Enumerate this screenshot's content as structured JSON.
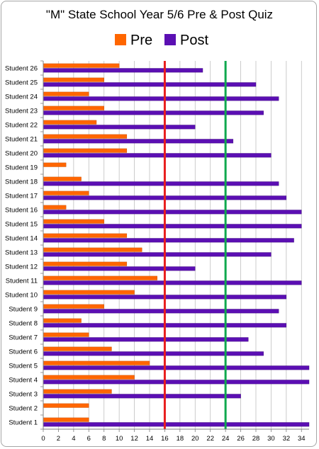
{
  "chart_data": {
    "type": "bar",
    "orientation": "horizontal",
    "title": "\"M\" State School Year 5/6 Pre & Post Quiz",
    "legend_placement": "top",
    "grid": true,
    "xlim": [
      0,
      35
    ],
    "xticks": [
      0,
      2,
      4,
      6,
      8,
      10,
      12,
      14,
      16,
      18,
      20,
      22,
      24,
      26,
      28,
      30,
      32,
      34
    ],
    "categories": [
      "Student 1",
      "Student 2",
      "Student 3",
      "Student 4",
      "Student 5",
      "Student 6",
      "Student 7",
      "Student 8",
      "Student 9",
      "Student 10",
      "Student 11",
      "Student 12",
      "Student 13",
      "Student 14",
      "Student 15",
      "Student 16",
      "Student 17",
      "Student 18",
      "Student 19",
      "Student 20",
      "Student 21",
      "Student 22",
      "Student 23",
      "Student 24",
      "Student 25",
      "Student 26"
    ],
    "series": [
      {
        "name": "Pre",
        "color": "#ff6600",
        "values": [
          6,
          6,
          9,
          12,
          14,
          9,
          6,
          5,
          8,
          12,
          15,
          11,
          13,
          11,
          8,
          3,
          6,
          5,
          3,
          11,
          11,
          7,
          8,
          6,
          8,
          10
        ]
      },
      {
        "name": "Post",
        "color": "#5b0fb3",
        "values": [
          35,
          null,
          26,
          35,
          35,
          29,
          27,
          32,
          31,
          32,
          34,
          20,
          30,
          33,
          34,
          34,
          32,
          31,
          null,
          30,
          25,
          20,
          29,
          31,
          28,
          21
        ]
      }
    ],
    "reference_lines": [
      {
        "value": 16,
        "color": "#e81e1e"
      },
      {
        "value": 24,
        "color": "#0fa84e"
      }
    ]
  }
}
